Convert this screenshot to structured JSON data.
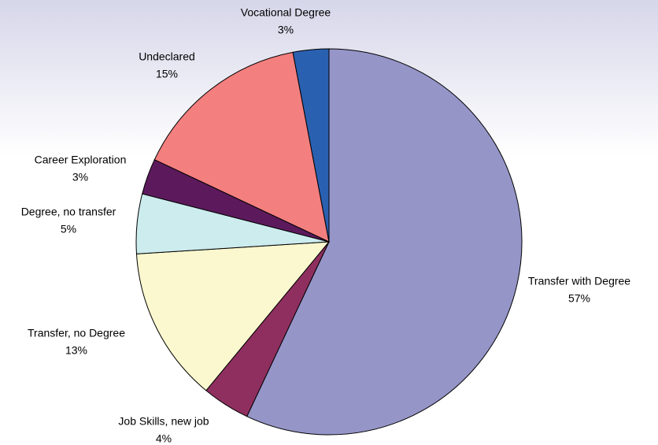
{
  "chart_data": {
    "type": "pie",
    "categories": [
      "Transfer with Degree",
      "Job Skills, new job",
      "Transfer, no Degree",
      "Degree, no transfer",
      "Career Exploration",
      "Undeclared",
      "Vocational Degree"
    ],
    "values": [
      57,
      4,
      13,
      5,
      3,
      15,
      3
    ],
    "value_labels": [
      "57%",
      "4%",
      "13%",
      "5%",
      "3%",
      "15%",
      "3%"
    ],
    "colors": [
      "#9595c8",
      "#8f2f5f",
      "#fbf8cf",
      "#ccecee",
      "#5c1a5c",
      "#f47f7f",
      "#2a60b0"
    ]
  }
}
